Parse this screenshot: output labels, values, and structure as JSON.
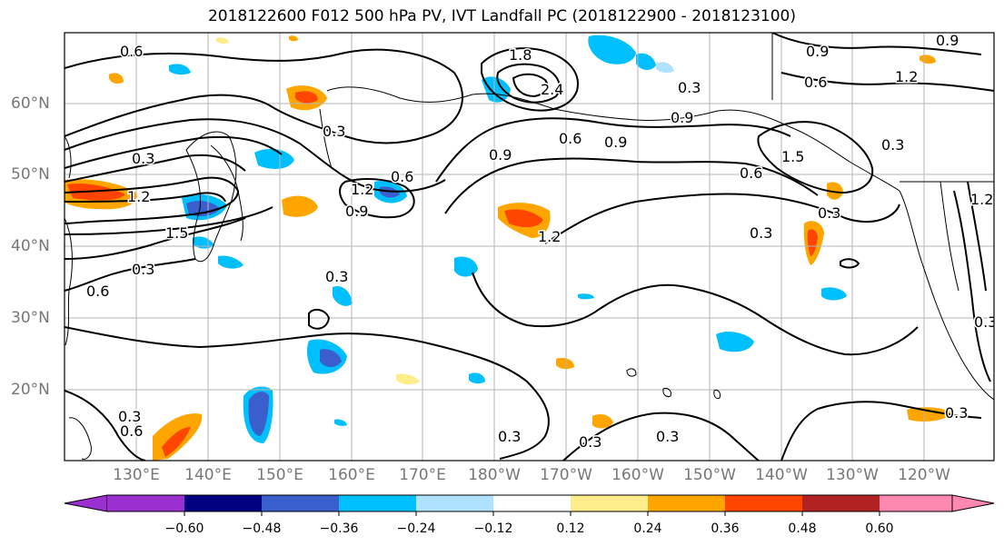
{
  "title": "2018122600 F012 500 hPa PV, IVT Landfall PC (2018122900 - 2018123100)",
  "lat_labels": [
    "60°N",
    "50°N",
    "40°N",
    "30°N",
    "20°N"
  ],
  "lon_labels": [
    "130°E",
    "140°E",
    "150°E",
    "160°E",
    "170°E",
    "180°W",
    "170°W",
    "160°W",
    "150°W",
    "140°W",
    "130°W",
    "120°W"
  ],
  "contour_labels": [
    "0.6",
    "1.8",
    "2.4",
    "0.3",
    "0.3",
    "0.6",
    "0.9",
    "0.9",
    "1.2",
    "0.9",
    "1.2",
    "0.6",
    "0.9",
    "1.5",
    "0.3",
    "0.3",
    "1.5",
    "0.6",
    "0.3",
    "1.2",
    "0.6",
    "1.2",
    "0.9",
    "1.2",
    "0.3",
    "0.3",
    "0.3",
    "0.3",
    "0.3",
    "0.3",
    "0.6",
    "0.3",
    "0.3",
    "0.3",
    "0.6",
    "0.9"
  ],
  "colorbar": {
    "ticks": [
      "−0.60",
      "−0.48",
      "−0.36",
      "−0.24",
      "−0.12",
      "0.12",
      "0.24",
      "0.36",
      "0.48",
      "0.60"
    ],
    "colors": [
      "#9b30d0",
      "#000080",
      "#3a5fcd",
      "#00bfff",
      "#b0e2ff",
      "#ffffff",
      "#ffec8b",
      "#ffa500",
      "#ff4500",
      "#b22222",
      "#ff88b0"
    ]
  },
  "shading_colors": {
    "neg_light": "#00bfff",
    "neg_dark": "#3a5fcd",
    "neg_pale": "#b0e2ff",
    "pos_light": "#ffec8b",
    "pos_mid": "#ffa500",
    "pos_dark": "#ff4500"
  }
}
